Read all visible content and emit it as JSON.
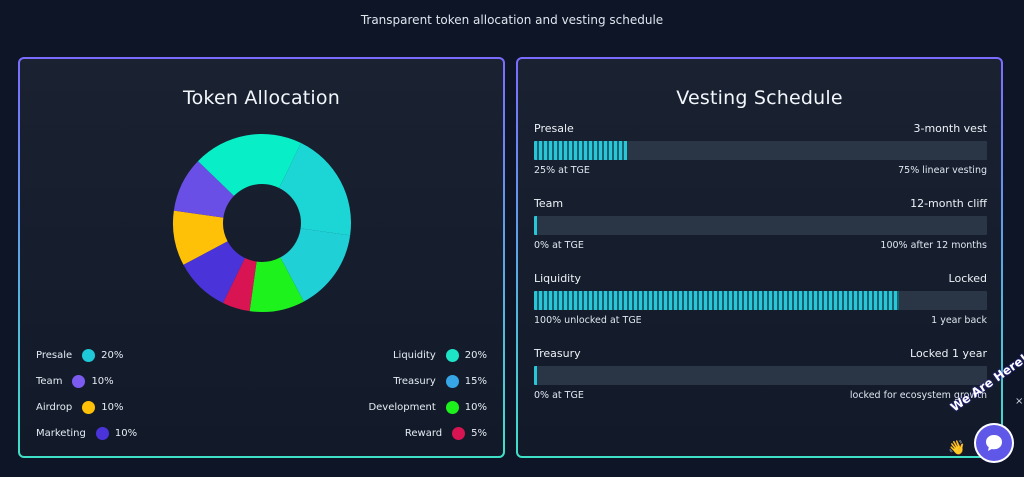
{
  "header": {
    "subtitle": "Transparent token allocation and vesting schedule"
  },
  "allocation": {
    "title": "Token Allocation",
    "chart_data": {
      "type": "pie",
      "title": "Token Allocation",
      "categories": [
        "Liquidity",
        "Treasury",
        "Development",
        "Reward",
        "Marketing",
        "Airdrop",
        "Team",
        "Presale"
      ],
      "values": [
        20,
        15,
        10,
        5,
        10,
        10,
        10,
        20
      ],
      "colors": [
        "#1cd6d6",
        "#1fd0d6",
        "#1df21d",
        "#d81452",
        "#4a33d9",
        "#ffc107",
        "#6a4fe6",
        "#08eec6"
      ],
      "donut": true
    },
    "legend_left": [
      {
        "label": "Presale",
        "value": "20%",
        "color": "#1ec9d8"
      },
      {
        "label": "Team",
        "value": "10%",
        "color": "#7c5cf0"
      },
      {
        "label": "Airdrop",
        "value": "10%",
        "color": "#ffc107"
      },
      {
        "label": "Marketing",
        "value": "10%",
        "color": "#4a33d9"
      }
    ],
    "legend_right": [
      {
        "label": "Liquidity",
        "value": "20%",
        "color": "#1de3c7"
      },
      {
        "label": "Treasury",
        "value": "15%",
        "color": "#36a6e6"
      },
      {
        "label": "Development",
        "value": "10%",
        "color": "#1df21d"
      },
      {
        "label": "Reward",
        "value": "5%",
        "color": "#d81452"
      }
    ]
  },
  "vesting": {
    "title": "Vesting Schedule",
    "rows": [
      {
        "name": "Presale",
        "term": "3-month vest",
        "left_note": "25% at TGE",
        "right_note": "75% linear vesting",
        "progress": 0.205
      },
      {
        "name": "Team",
        "term": "12-month cliff",
        "left_note": "0% at TGE",
        "right_note": "100% after 12 months",
        "progress": 0.006
      },
      {
        "name": "Liquidity",
        "term": "Locked",
        "left_note": "100% unlocked at TGE",
        "right_note": "1 year back",
        "progress": 0.805
      },
      {
        "name": "Treasury",
        "term": "Locked 1 year",
        "left_note": "0% at TGE",
        "right_note": "locked for ecosystem growth",
        "progress": 0.006
      }
    ]
  },
  "chat": {
    "label": "We Are Here!",
    "close": "×",
    "wave": "👋"
  }
}
